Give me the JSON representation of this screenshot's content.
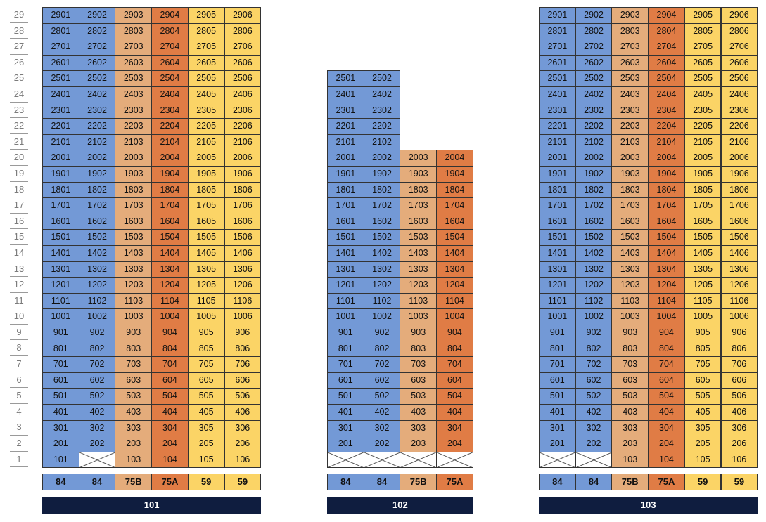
{
  "floors": [
    "29",
    "28",
    "27",
    "26",
    "25",
    "24",
    "23",
    "22",
    "21",
    "20",
    "19",
    "18",
    "17",
    "16",
    "15",
    "14",
    "13",
    "12",
    "11",
    "10",
    "9",
    "8",
    "7",
    "6",
    "5",
    "4",
    "3",
    "2",
    "1"
  ],
  "colors": {
    "blue": "#7399d6",
    "tan": "#e4ac7b",
    "orange": "#e07c45",
    "yellow": "#fbd466",
    "label_bar": "#0f1d3f"
  },
  "buildings": [
    {
      "name": "101",
      "top_floor": 29,
      "column_floor_tops": [
        29,
        29,
        29,
        29,
        29,
        29
      ],
      "column_colors": [
        "blue",
        "blue",
        "tan",
        "orange",
        "yellow",
        "yellow"
      ],
      "types": [
        "84",
        "84",
        "75B",
        "75A",
        "59",
        "59"
      ],
      "first_floor": [
        "101",
        "",
        "103",
        "104",
        "105",
        "106"
      ],
      "first_floor_empty": [
        false,
        true,
        false,
        false,
        false,
        false
      ]
    },
    {
      "name": "102",
      "top_floor": 25,
      "column_floor_tops": [
        25,
        25,
        20,
        20
      ],
      "column_colors": [
        "blue",
        "blue",
        "tan",
        "orange"
      ],
      "types": [
        "84",
        "84",
        "75B",
        "75A"
      ],
      "first_floor": [
        "",
        "",
        "",
        ""
      ],
      "first_floor_empty": [
        true,
        true,
        true,
        true
      ]
    },
    {
      "name": "103",
      "top_floor": 29,
      "column_floor_tops": [
        29,
        29,
        29,
        29,
        29,
        29
      ],
      "column_colors": [
        "blue",
        "blue",
        "tan",
        "orange",
        "yellow",
        "yellow"
      ],
      "types": [
        "84",
        "84",
        "75B",
        "75A",
        "59",
        "59"
      ],
      "first_floor": [
        "",
        "",
        "103",
        "104",
        "105",
        "106"
      ],
      "first_floor_empty": [
        true,
        true,
        false,
        false,
        false,
        false
      ]
    }
  ]
}
